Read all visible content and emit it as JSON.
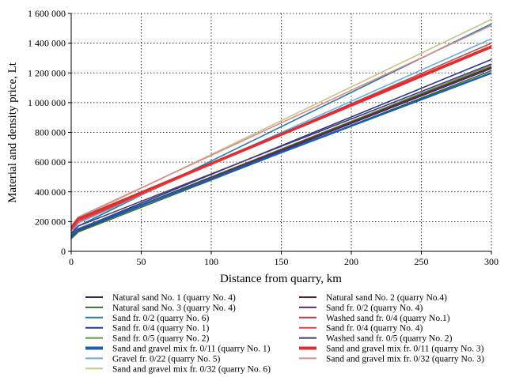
{
  "chart_data": {
    "type": "line",
    "title": "",
    "xlabel": "Distance from quarry, km",
    "ylabel": "Material and density price, Lt",
    "xlim": [
      0,
      300
    ],
    "ylim": [
      0,
      1600000
    ],
    "x_ticks": [
      0,
      50,
      100,
      150,
      200,
      250,
      300
    ],
    "x_tick_labels": [
      "0",
      "50",
      "100",
      "150",
      "200",
      "250",
      "300"
    ],
    "y_ticks": [
      0,
      200000,
      400000,
      600000,
      800000,
      1000000,
      1200000,
      1400000,
      1600000
    ],
    "y_tick_labels": [
      "0",
      "200 000",
      "400 000",
      "600 000",
      "800 000",
      "1 000 000",
      "1 200 000",
      "1 400 000",
      "1 600 000"
    ],
    "grid": "dotted",
    "legend_position": "bottom, two columns",
    "x": [
      0,
      5,
      300
    ],
    "series": [
      {
        "name": "Natural sand No. 1 (quarry No. 4)",
        "color": "#1f2f5c",
        "width": 2,
        "values": [
          90000,
          140000,
          1230000
        ]
      },
      {
        "name": "Natural sand No. 3 (quarry No. 4)",
        "color": "#3a6b35",
        "width": 2,
        "values": [
          85000,
          130000,
          1215000
        ]
      },
      {
        "name": "Sand fr. 0/2 (quarry No. 6)",
        "color": "#2a7aa8",
        "width": 2,
        "values": [
          110000,
          170000,
          1530000
        ]
      },
      {
        "name": "Sand fr. 0/4 (quarry No. 1)",
        "color": "#2b3a8c",
        "width": 2,
        "values": [
          100000,
          150000,
          1290000
        ]
      },
      {
        "name": "Sand fr. 0/5 (quarry No. 2)",
        "color": "#5b9c3c",
        "width": 2,
        "values": [
          95000,
          145000,
          1250000
        ]
      },
      {
        "name": "Sand and gravel mix fr. 0/11 (quarry No. 1)",
        "color": "#1f5bab",
        "width": 4,
        "values": [
          100000,
          150000,
          1200000
        ]
      },
      {
        "name": "Gravel fr. 0/22 (quarry No. 5)",
        "color": "#6aaee0",
        "width": 2,
        "values": [
          120000,
          190000,
          1430000
        ]
      },
      {
        "name": "Sand and gravel mix fr. 0/32 (quarry No. 6)",
        "color": "#c9c48a",
        "width": 2,
        "values": [
          150000,
          220000,
          1560000
        ]
      },
      {
        "name": "Natural sand No. 2 (quarry No.4)",
        "color": "#6b1a1a",
        "width": 2,
        "values": [
          95000,
          145000,
          1240000
        ]
      },
      {
        "name": "Sand fr. 0/2 (quarry No. 4)",
        "color": "#5a2a6a",
        "width": 2,
        "values": [
          95000,
          145000,
          1235000
        ]
      },
      {
        "name": "Washed sand fr. 0/4 (quarry No.1)",
        "color": "#c43a4a",
        "width": 2,
        "values": [
          150000,
          210000,
          1370000
        ]
      },
      {
        "name": "Sand fr. 0/4 (quarry No. 4)",
        "color": "#d04848",
        "width": 2,
        "values": [
          140000,
          200000,
          1400000
        ]
      },
      {
        "name": "Washed sand fr. 0/5 (quarry No. 2)",
        "color": "#4a3a7a",
        "width": 2,
        "values": [
          120000,
          170000,
          1260000
        ]
      },
      {
        "name": "Sand and gravel mix fr. 0/11 (quarry No. 3)",
        "color": "#e52b2b",
        "width": 4,
        "values": [
          160000,
          220000,
          1380000
        ]
      },
      {
        "name": "Sand and gravel mix fr. 0/32 (quarry No. 3)",
        "color": "#d98a8a",
        "width": 2,
        "values": [
          170000,
          230000,
          1520000
        ]
      }
    ]
  }
}
